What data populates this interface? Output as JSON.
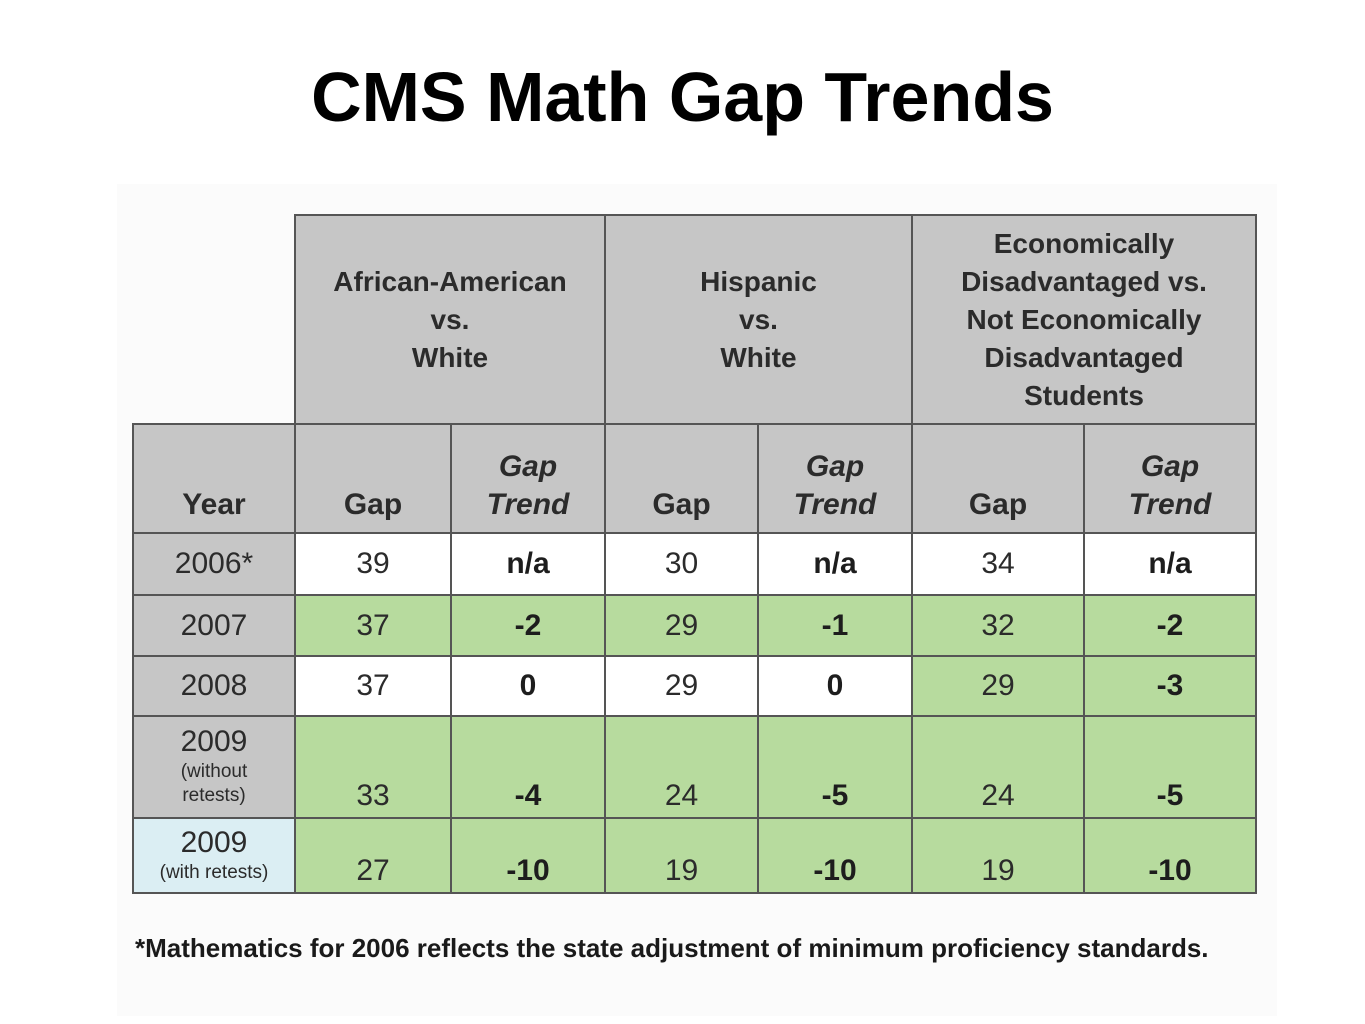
{
  "title": "CMS Math Gap Trends",
  "table": {
    "group_headers": [
      "African-American\nvs.\nWhite",
      "Hispanic\nvs.\nWhite",
      "Economically\nDisadvantaged vs.\nNot Economically\nDisadvantaged\nStudents"
    ],
    "column_headers": {
      "year": "Year",
      "gap": "Gap",
      "gap_trend": "Gap\nTrend"
    },
    "rows": [
      {
        "year": "2006*",
        "year_note": "",
        "values": [
          "39",
          "n/a",
          "30",
          "n/a",
          "34",
          "n/a"
        ]
      },
      {
        "year": "2007",
        "year_note": "",
        "values": [
          "37",
          "-2",
          "29",
          "-1",
          "32",
          "-2"
        ]
      },
      {
        "year": "2008",
        "year_note": "",
        "values": [
          "37",
          "0",
          "29",
          "0",
          "29",
          "-3"
        ]
      },
      {
        "year": "2009",
        "year_note": "(without\nretests)",
        "values": [
          "33",
          "-4",
          "24",
          "-5",
          "24",
          "-5"
        ]
      },
      {
        "year": "2009",
        "year_note": "(with retests)",
        "values": [
          "27",
          "-10",
          "19",
          "-10",
          "19",
          "-10"
        ]
      }
    ],
    "colors": {
      "header_gray": "#c6c6c6",
      "improved_green": "#b7db9e",
      "no_change_white": "#ffffff",
      "retest_year_blue": "#dbeef3"
    }
  },
  "footnote": "*Mathematics for 2006 reflects the state adjustment of minimum proficiency standards."
}
